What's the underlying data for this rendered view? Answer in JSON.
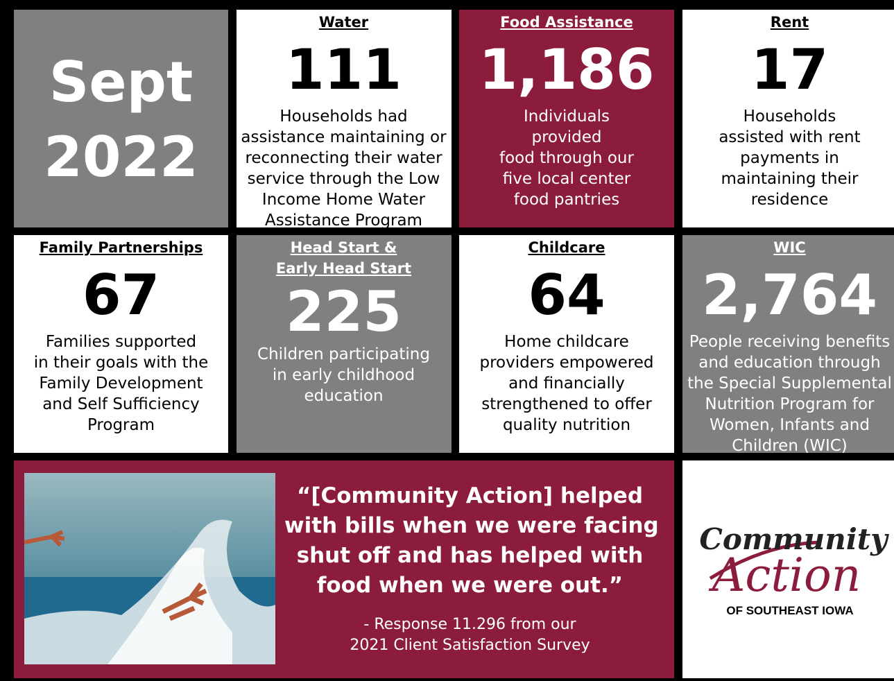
{
  "header": {
    "period": [
      "Sept",
      "2022"
    ],
    "background": "#808080"
  },
  "tiles": [
    {
      "title": [
        "Water"
      ],
      "number": "111",
      "description": [
        "Households had",
        "assistance maintaining or",
        "reconnecting their water",
        "service through the Low",
        "Income Home Water",
        "Assistance Program"
      ],
      "background": "#ffffff"
    },
    {
      "title": [
        "Food Assistance"
      ],
      "number": "1,186",
      "description": [
        "Individuals",
        "provided",
        "food through our",
        "five local center",
        "food pantries"
      ],
      "background": "#8b1c3c"
    },
    {
      "title": [
        "Rent"
      ],
      "number": "17",
      "description": [
        "Households",
        "assisted with rent",
        "payments in",
        "maintaining their",
        "residence"
      ],
      "background": "#ffffff"
    },
    {
      "title": [
        "Family Partnerships"
      ],
      "number": "67",
      "description": [
        "Families supported",
        "in their goals with the",
        "Family Development",
        "and Self Sufficiency",
        "Program"
      ],
      "background": "#ffffff"
    },
    {
      "title": [
        "Head Start &",
        "Early Head Start"
      ],
      "number": "225",
      "description": [
        "Children participating",
        "in early childhood",
        "education"
      ],
      "background": "#808080"
    },
    {
      "title": [
        "Childcare"
      ],
      "number": "64",
      "description": [
        "Home childcare",
        "providers empowered",
        "and financially",
        "strengthened to offer",
        "quality nutrition"
      ],
      "background": "#ffffff"
    },
    {
      "title": [
        "WIC"
      ],
      "number": "2,764",
      "description": [
        "People receiving benefits",
        "and education through",
        "the Special Supplemental",
        "Nutrition Program for",
        "Women, Infants and",
        "Children (WIC)"
      ],
      "background": "#808080"
    }
  ],
  "quote": {
    "text": [
      "“[Community Action] helped",
      "with bills when we were facing",
      "shut off and has helped with",
      "food when we were out.”"
    ],
    "attribution": [
      "- Response 11.296 from our",
      "2021 Client Satisfaction Survey"
    ]
  },
  "logo": {
    "line1": "Community",
    "line2": "Action",
    "line3": "OF SOUTHEAST IOWA"
  }
}
